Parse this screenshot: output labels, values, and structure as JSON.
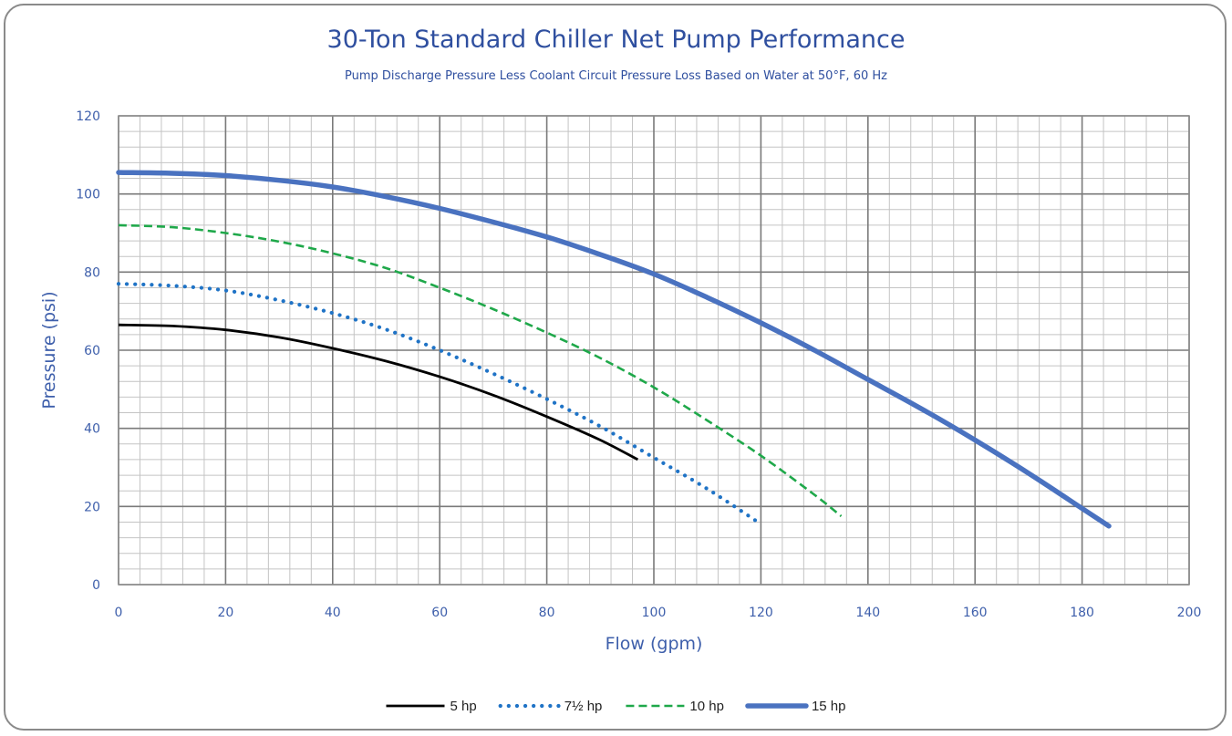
{
  "chart_data": {
    "type": "line",
    "title": "30-Ton Standard Chiller Net Pump Performance",
    "subtitle": "Pump Discharge Pressure Less Coolant Circuit Pressure Loss Based on Water at 50°F, 60 Hz",
    "xlabel": "Flow (gpm)",
    "ylabel": "Pressure (psi)",
    "xlim": [
      0,
      200
    ],
    "ylim": [
      0,
      120
    ],
    "x_ticks": [
      0,
      20,
      40,
      60,
      80,
      100,
      120,
      140,
      160,
      180,
      200
    ],
    "y_ticks": [
      0,
      20,
      40,
      60,
      80,
      100,
      120
    ],
    "grid": true,
    "legend_position": "bottom",
    "series": [
      {
        "name": "5 hp",
        "color": "#000000",
        "line_style": "solid",
        "x": [
          0,
          10,
          20,
          30,
          40,
          50,
          60,
          70,
          80,
          90,
          97
        ],
        "y": [
          66.5,
          66.2,
          65.2,
          63.3,
          60.5,
          57.2,
          53.2,
          48.5,
          43.0,
          37.0,
          32.0
        ]
      },
      {
        "name": "7½ hp",
        "color": "#1f73c6",
        "line_style": "dotted",
        "x": [
          0,
          10,
          20,
          30,
          40,
          50,
          60,
          70,
          80,
          90,
          100,
          110,
          120
        ],
        "y": [
          77.0,
          76.5,
          75.3,
          72.8,
          69.5,
          65.3,
          60.0,
          54.0,
          47.5,
          40.5,
          32.5,
          24.5,
          15.5
        ]
      },
      {
        "name": "10 hp",
        "color": "#1fa84a",
        "line_style": "dashed",
        "x": [
          0,
          10,
          20,
          30,
          40,
          50,
          60,
          70,
          80,
          90,
          100,
          110,
          120,
          130,
          135
        ],
        "y": [
          92.0,
          91.5,
          90.0,
          87.8,
          84.8,
          81.0,
          76.0,
          70.5,
          64.5,
          58.0,
          50.5,
          42.0,
          33.0,
          23.0,
          17.5
        ]
      },
      {
        "name": "15 hp",
        "color": "#4a72c0",
        "line_style": "solid-thick",
        "x": [
          0,
          10,
          20,
          30,
          40,
          50,
          60,
          70,
          80,
          90,
          100,
          110,
          120,
          130,
          140,
          150,
          160,
          170,
          180,
          185
        ],
        "y": [
          105.5,
          105.3,
          104.7,
          103.5,
          101.8,
          99.3,
          96.3,
          92.8,
          89.0,
          84.5,
          79.5,
          73.5,
          67.0,
          60.0,
          52.5,
          45.0,
          37.0,
          28.5,
          19.5,
          15.0
        ]
      }
    ]
  }
}
